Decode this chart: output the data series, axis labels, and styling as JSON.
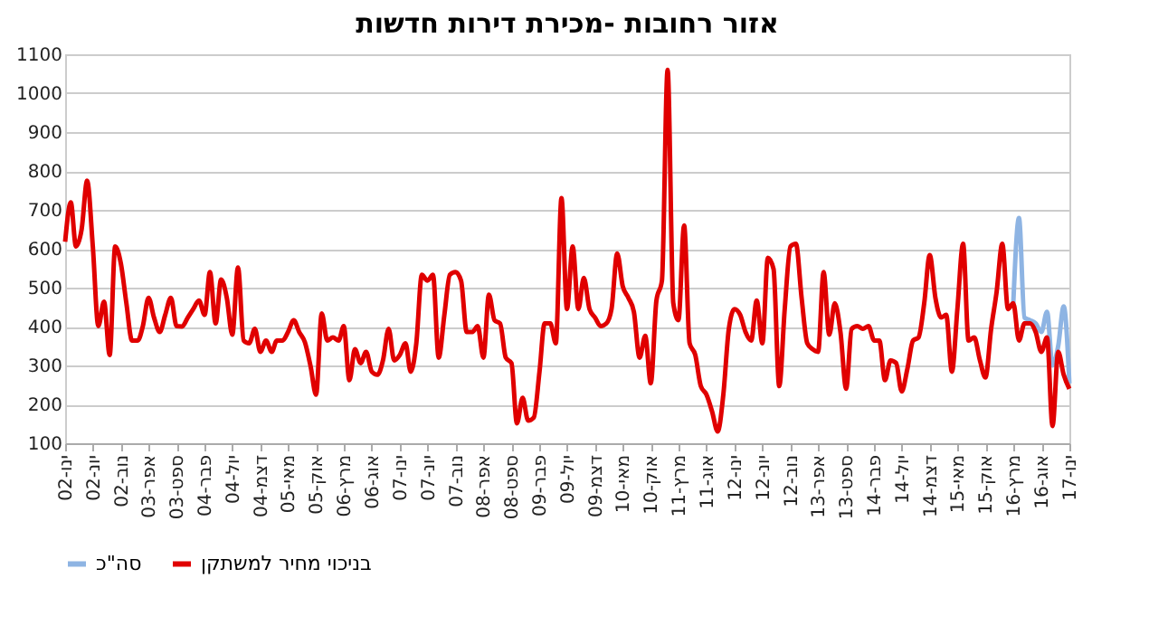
{
  "chart_data": {
    "type": "line",
    "title": "אזור רחובות -מכירת דירות חדשות",
    "x": [
      "2002-01",
      "2002-02",
      "2002-03",
      "2002-04",
      "2002-05",
      "2002-06",
      "2002-07",
      "2002-08",
      "2002-09",
      "2002-10",
      "2002-11",
      "2002-12",
      "2003-01",
      "2003-02",
      "2003-03",
      "2003-04",
      "2003-05",
      "2003-06",
      "2003-07",
      "2003-08",
      "2003-09",
      "2003-10",
      "2003-11",
      "2003-12",
      "2004-01",
      "2004-02",
      "2004-03",
      "2004-04",
      "2004-05",
      "2004-06",
      "2004-07",
      "2004-08",
      "2004-09",
      "2004-10",
      "2004-11",
      "2004-12",
      "2005-01",
      "2005-02",
      "2005-03",
      "2005-04",
      "2005-05",
      "2005-06",
      "2005-07",
      "2005-08",
      "2005-09",
      "2005-10",
      "2005-11",
      "2005-12",
      "2006-01",
      "2006-02",
      "2006-03",
      "2006-04",
      "2006-05",
      "2006-06",
      "2006-07",
      "2006-08",
      "2006-09",
      "2006-10",
      "2006-11",
      "2006-12",
      "2007-01",
      "2007-02",
      "2007-03",
      "2007-04",
      "2007-05",
      "2007-06",
      "2007-07",
      "2007-08",
      "2007-09",
      "2007-10",
      "2007-11",
      "2007-12",
      "2008-01",
      "2008-02",
      "2008-03",
      "2008-04",
      "2008-05",
      "2008-06",
      "2008-07",
      "2008-08",
      "2008-09",
      "2008-10",
      "2008-11",
      "2008-12",
      "2009-01",
      "2009-02",
      "2009-03",
      "2009-04",
      "2009-05",
      "2009-06",
      "2009-07",
      "2009-08",
      "2009-09",
      "2009-10",
      "2009-11",
      "2009-12",
      "2010-01",
      "2010-02",
      "2010-03",
      "2010-04",
      "2010-05",
      "2010-06",
      "2010-07",
      "2010-08",
      "2010-09",
      "2010-10",
      "2010-11",
      "2010-12",
      "2011-01",
      "2011-02",
      "2011-03",
      "2011-04",
      "2011-05",
      "2011-06",
      "2011-07",
      "2011-08",
      "2011-09",
      "2011-10",
      "2011-11",
      "2011-12",
      "2012-01",
      "2012-02",
      "2012-03",
      "2012-04",
      "2012-05",
      "2012-06",
      "2012-07",
      "2012-08",
      "2012-09",
      "2012-10",
      "2012-11",
      "2012-12",
      "2013-01",
      "2013-02",
      "2013-03",
      "2013-04",
      "2013-05",
      "2013-06",
      "2013-07",
      "2013-08",
      "2013-09",
      "2013-10",
      "2013-11",
      "2013-12",
      "2014-01",
      "2014-02",
      "2014-03",
      "2014-04",
      "2014-05",
      "2014-06",
      "2014-07",
      "2014-08",
      "2014-09",
      "2014-10",
      "2014-11",
      "2014-12",
      "2015-01",
      "2015-02",
      "2015-03",
      "2015-04",
      "2015-05",
      "2015-06",
      "2015-07",
      "2015-08",
      "2015-09",
      "2015-10",
      "2015-11",
      "2015-12",
      "2016-01",
      "2016-02",
      "2016-03",
      "2016-04",
      "2016-05",
      "2016-06",
      "2016-07",
      "2016-08",
      "2016-09",
      "2016-10",
      "2016-11",
      "2016-12",
      "2017-01"
    ],
    "series": [
      {
        "name": "סה\"כ",
        "color": "#8eb4e3",
        "x": [
          "2016-03",
          "2016-04",
          "2016-05",
          "2016-06",
          "2016-07",
          "2016-08",
          "2016-09",
          "2016-10",
          "2016-11",
          "2016-12",
          "2017-01"
        ],
        "values": [
          460,
          679,
          423,
          416,
          408,
          386,
          438,
          300,
          350,
          452,
          254
        ]
      },
      {
        "name": "בניכוי מחיר למשתקן",
        "color": "#e00000",
        "values": [
          618,
          719,
          606,
          650,
          775,
          606,
          401,
          464,
          327,
          606,
          562,
          460,
          364,
          364,
          401,
          474,
          423,
          386,
          430,
          474,
          401,
          400,
          423,
          445,
          467,
          430,
          540,
          408,
          521,
          474,
          379,
          552,
          364,
          357,
          394,
          335,
          364,
          335,
          364,
          364,
          386,
          416,
          386,
          360,
          298,
          225,
          434,
          364,
          372,
          364,
          401,
          262,
          342,
          306,
          335,
          284,
          276,
          313,
          394,
          313,
          327,
          357,
          284,
          357,
          533,
          518,
          533,
          320,
          430,
          533,
          540,
          518,
          386,
          386,
          401,
          320,
          482,
          416,
          408,
          320,
          306,
          151,
          217,
          158,
          166,
          284,
          408,
          408,
          357,
          730,
          445,
          606,
          445,
          525,
          445,
          423,
          401,
          408,
          445,
          588,
          504,
          474,
          438,
          320,
          376,
          254,
          467,
          518,
          1060,
          460,
          416,
          660,
          357,
          327,
          247,
          225,
          181,
          130,
          225,
          394,
          445,
          430,
          386,
          364,
          467,
          357,
          577,
          548,
          247,
          445,
          606,
          613,
          474,
          357,
          342,
          335,
          540,
          379,
          460,
          386,
          240,
          394,
          401,
          394,
          401,
          364,
          364,
          262,
          313,
          306,
          233,
          291,
          364,
          372,
          460,
          584,
          474,
          423,
          430,
          284,
          445,
          613,
          364,
          372,
          313,
          269,
          394,
          489,
          613,
          445,
          460,
          364,
          408,
          408,
          386,
          335,
          372,
          144,
          335,
          276,
          240
        ]
      }
    ],
    "xlim": [
      "2002-01",
      "2017-01"
    ],
    "xticks": [
      {
        "value": "2002-01",
        "label": "ינו-02"
      },
      {
        "value": "2002-06",
        "label": "יונ-02"
      },
      {
        "value": "2002-11",
        "label": "נוב-02"
      },
      {
        "value": "2003-04",
        "label": "אפר-03"
      },
      {
        "value": "2003-09",
        "label": "ספט-03"
      },
      {
        "value": "2004-02",
        "label": "פבר-04"
      },
      {
        "value": "2004-07",
        "label": "יול-04"
      },
      {
        "value": "2004-12",
        "label": "דצמ-04"
      },
      {
        "value": "2005-05",
        "label": "מאי-05"
      },
      {
        "value": "2005-10",
        "label": "אוק-05"
      },
      {
        "value": "2006-03",
        "label": "מרץ-06"
      },
      {
        "value": "2006-08",
        "label": "אוג-06"
      },
      {
        "value": "2007-01",
        "label": "ינו-07"
      },
      {
        "value": "2007-06",
        "label": "יונ-07"
      },
      {
        "value": "2007-11",
        "label": "נוב-07"
      },
      {
        "value": "2008-04",
        "label": "אפר-08"
      },
      {
        "value": "2008-09",
        "label": "ספט-08"
      },
      {
        "value": "2009-02",
        "label": "פבר-09"
      },
      {
        "value": "2009-07",
        "label": "יול-09"
      },
      {
        "value": "2009-12",
        "label": "דצמ-09"
      },
      {
        "value": "2010-05",
        "label": "מאי-10"
      },
      {
        "value": "2010-10",
        "label": "אוק-10"
      },
      {
        "value": "2011-03",
        "label": "מרץ-11"
      },
      {
        "value": "2011-08",
        "label": "אוג-11"
      },
      {
        "value": "2012-01",
        "label": "ינו-12"
      },
      {
        "value": "2012-06",
        "label": "יונ-12"
      },
      {
        "value": "2012-11",
        "label": "נוב-12"
      },
      {
        "value": "2013-04",
        "label": "אפר-13"
      },
      {
        "value": "2013-09",
        "label": "ספט-13"
      },
      {
        "value": "2014-02",
        "label": "פבר-14"
      },
      {
        "value": "2014-07",
        "label": "יול-14"
      },
      {
        "value": "2014-12",
        "label": "דצמ-14"
      },
      {
        "value": "2015-05",
        "label": "מאי-15"
      },
      {
        "value": "2015-10",
        "label": "אוק-15"
      },
      {
        "value": "2016-03",
        "label": "מרץ-16"
      },
      {
        "value": "2016-08",
        "label": "אוג-16"
      },
      {
        "value": "2017-01",
        "label": "ינו-17"
      }
    ],
    "ylim": [
      100,
      1100
    ],
    "yticks": [
      100,
      200,
      300,
      400,
      500,
      600,
      700,
      800,
      900,
      1000,
      1100
    ],
    "grid": "y",
    "legend": "bottom",
    "marker": "none",
    "line_style": "solid"
  }
}
